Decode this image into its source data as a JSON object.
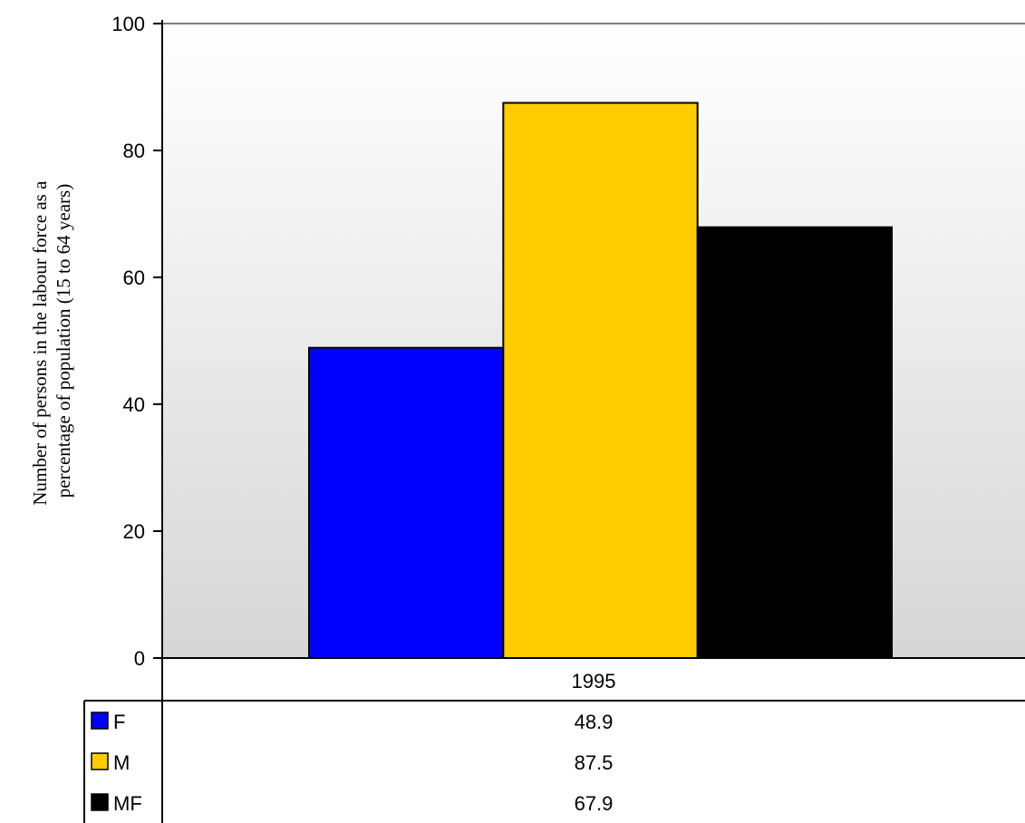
{
  "chart_data": {
    "type": "bar",
    "categories": [
      "1995"
    ],
    "series": [
      {
        "name": "F",
        "values": [
          48.9
        ],
        "color": "#0000ff"
      },
      {
        "name": "M",
        "values": [
          87.5
        ],
        "color": "#ffcc00"
      },
      {
        "name": "MF",
        "values": [
          67.9
        ],
        "color": "#000000"
      }
    ],
    "ylabel_lines": [
      "Number of persons in the labour force as a",
      "percentage of population (15 to 64 years)"
    ],
    "ylim": [
      0,
      100
    ],
    "yticks": [
      0,
      20,
      40,
      60,
      80,
      100
    ],
    "grid": false,
    "legend": "data-table"
  }
}
